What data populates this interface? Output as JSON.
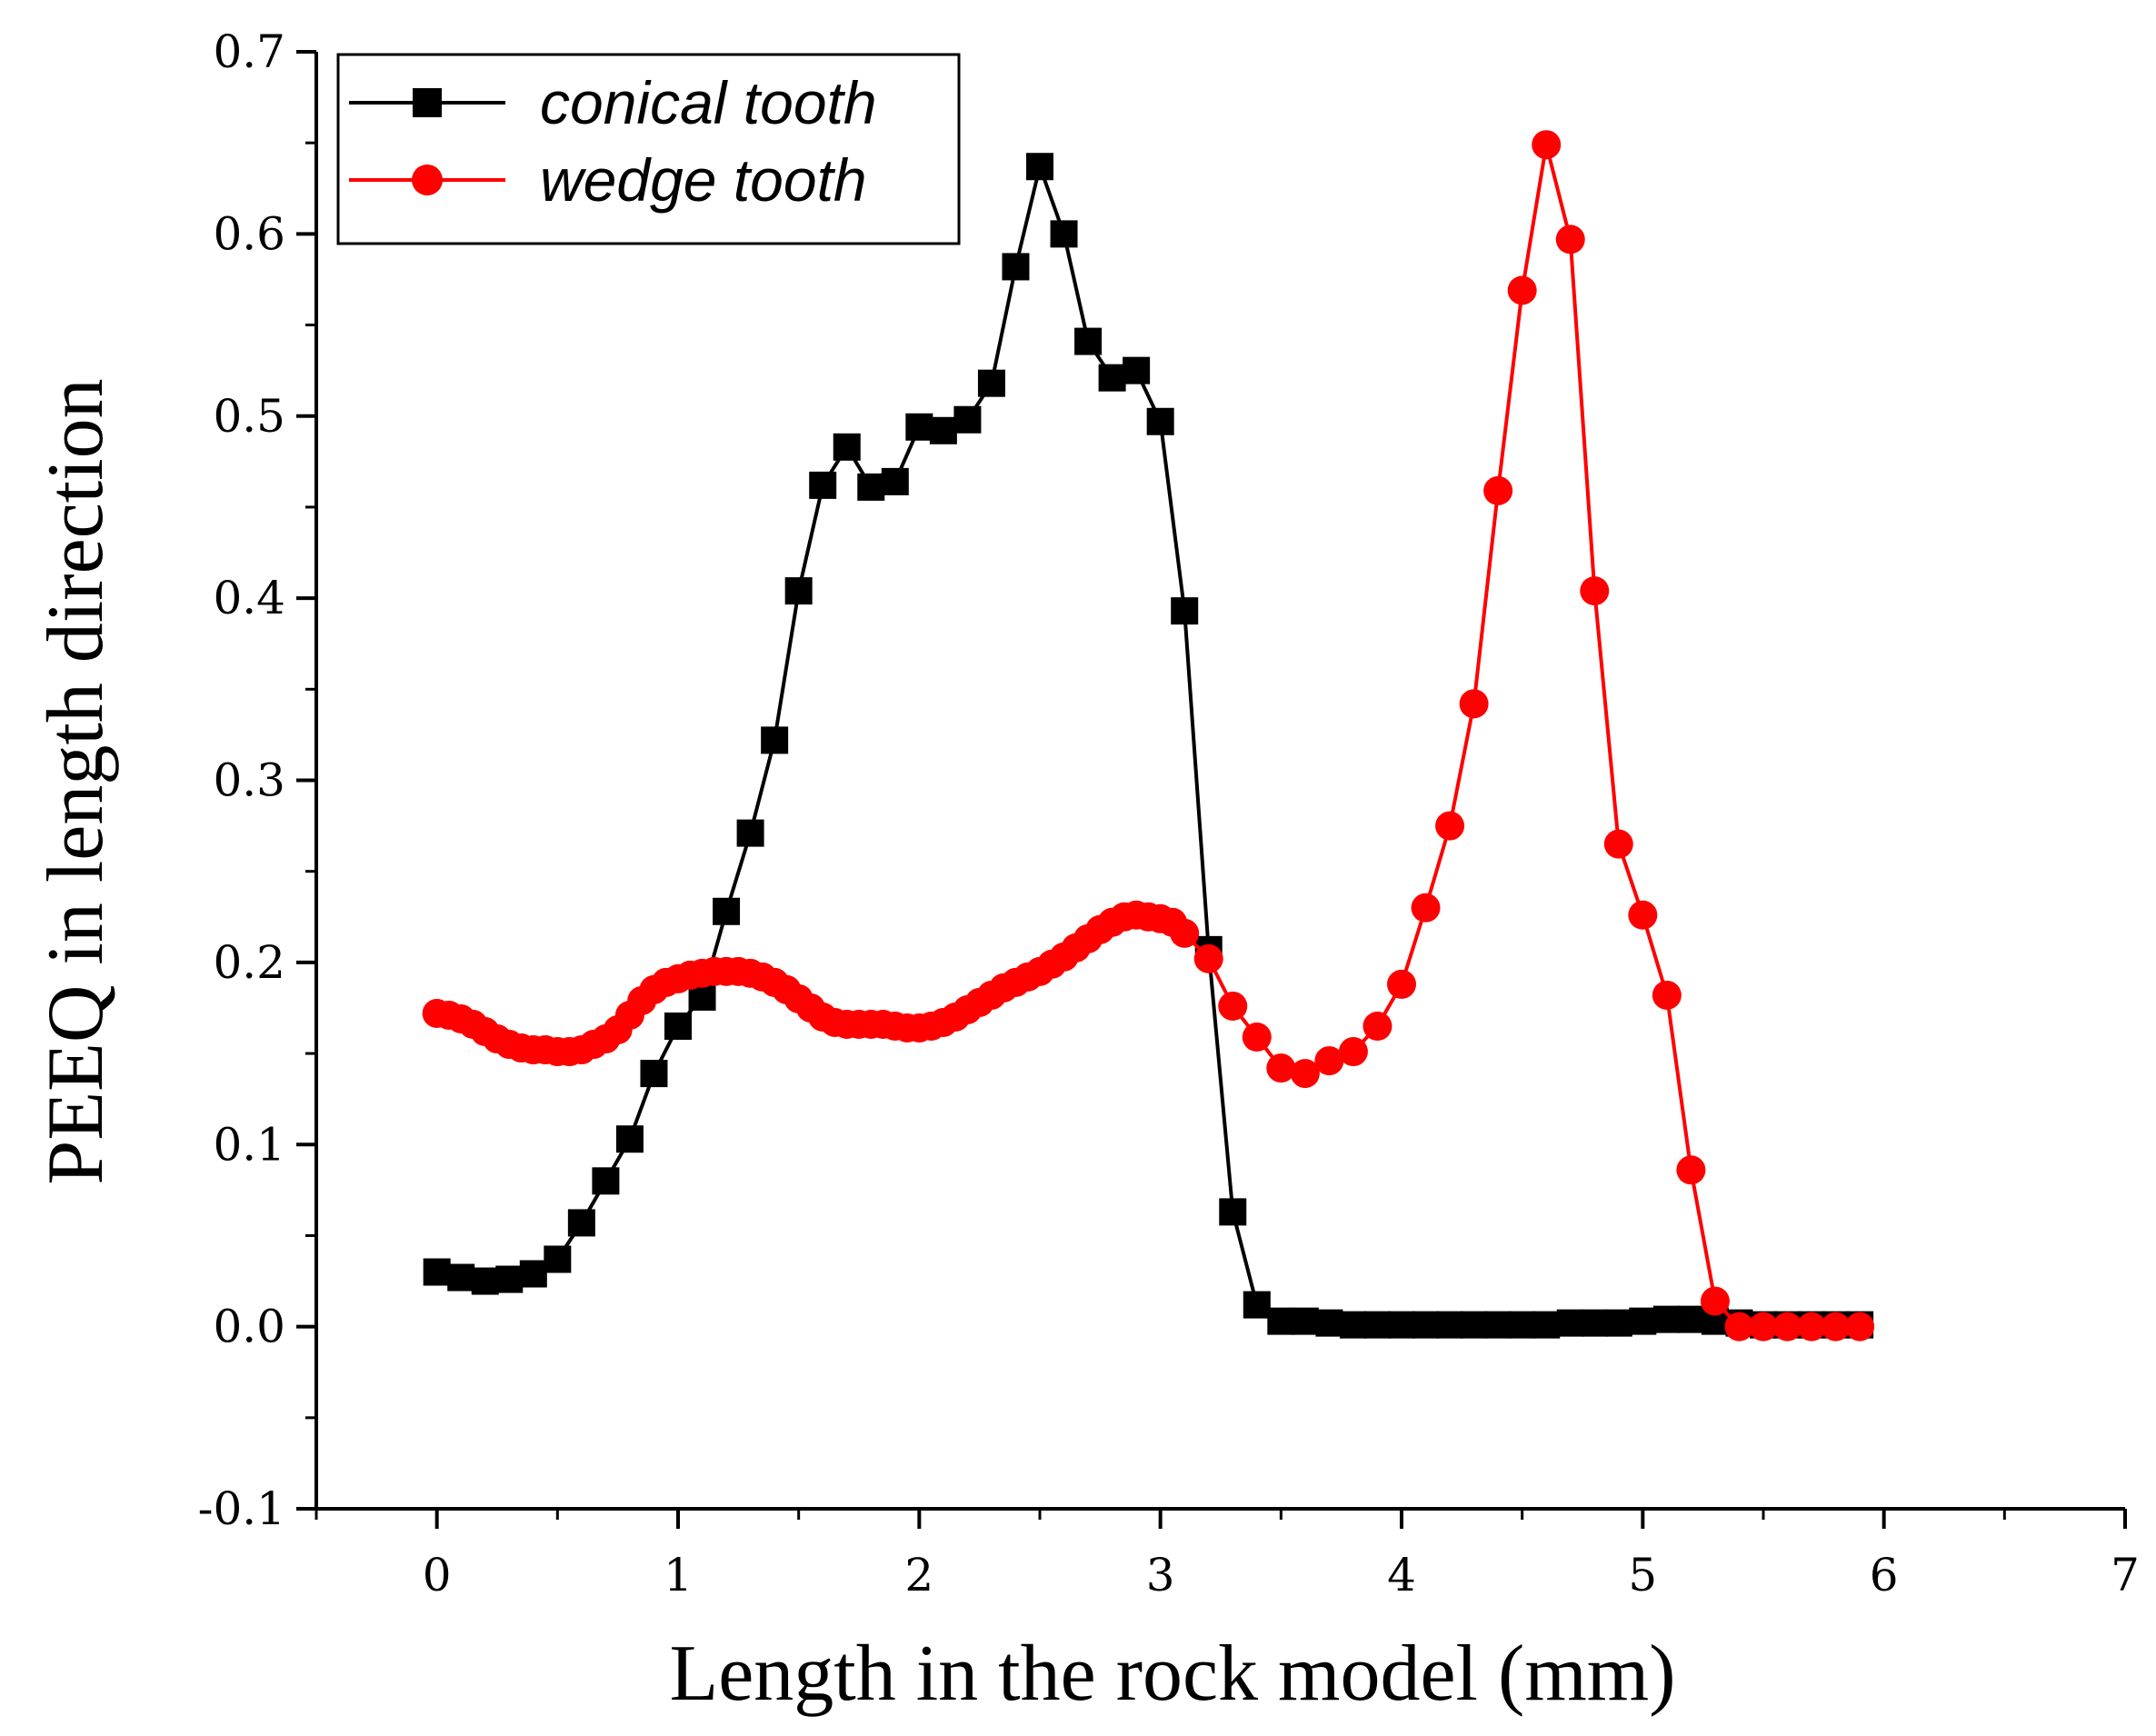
{
  "chart_data": {
    "type": "line",
    "title": "",
    "xlabel": "Length in the rock model (mm)",
    "ylabel": "PEEQ in length direction",
    "xlim": [
      -0.5,
      7
    ],
    "ylim": [
      -0.1,
      0.7
    ],
    "xticks": [
      0,
      1,
      2,
      3,
      4,
      5,
      6,
      7
    ],
    "xtick_labels": [
      "0",
      "1",
      "2",
      "3",
      "4",
      "5",
      "6",
      "7"
    ],
    "yticks": [
      -0.1,
      0.0,
      0.1,
      0.2,
      0.3,
      0.4,
      0.5,
      0.6,
      0.7
    ],
    "ytick_labels": [
      "-0.1",
      "0.0",
      "0.1",
      "0.2",
      "0.3",
      "0.4",
      "0.5",
      "0.6",
      "0.7"
    ],
    "grid": false,
    "legend_position": "top-left",
    "series": [
      {
        "name": "conical tooth",
        "color": "#000000",
        "marker": "square",
        "x": [
          0,
          0.1,
          0.2,
          0.3,
          0.4,
          0.5,
          0.6,
          0.7,
          0.8,
          0.9,
          1.0,
          1.1,
          1.2,
          1.3,
          1.4,
          1.5,
          1.6,
          1.7,
          1.8,
          1.9,
          2.0,
          2.1,
          2.2,
          2.3,
          2.4,
          2.5,
          2.6,
          2.7,
          2.8,
          2.9,
          3.0,
          3.1,
          3.2,
          3.3,
          3.4,
          3.5,
          3.6,
          3.7,
          3.8,
          3.9,
          4.0,
          4.1,
          4.2,
          4.3,
          4.4,
          4.5,
          4.6,
          4.7,
          4.8,
          4.9,
          5.0,
          5.1,
          5.2,
          5.3,
          5.4,
          5.5,
          5.6,
          5.7,
          5.8,
          5.9
        ],
        "y": [
          0.03,
          0.027,
          0.025,
          0.026,
          0.029,
          0.037,
          0.057,
          0.08,
          0.103,
          0.139,
          0.165,
          0.181,
          0.228,
          0.271,
          0.322,
          0.404,
          0.462,
          0.483,
          0.461,
          0.464,
          0.494,
          0.492,
          0.498,
          0.518,
          0.582,
          0.637,
          0.6,
          0.541,
          0.521,
          0.525,
          0.497,
          0.393,
          0.207,
          0.063,
          0.012,
          0.003,
          0.003,
          0.002,
          0.001,
          0.001,
          0.001,
          0.001,
          0.001,
          0.001,
          0.001,
          0.001,
          0.001,
          0.002,
          0.002,
          0.002,
          0.003,
          0.004,
          0.004,
          0.003,
          0.002,
          0.001,
          0.001,
          0.001,
          0.001,
          0.001
        ]
      },
      {
        "name": "wedge tooth",
        "color": "#ff0000",
        "marker": "circle",
        "x": [
          0,
          0.05,
          0.1,
          0.15,
          0.2,
          0.25,
          0.3,
          0.35,
          0.4,
          0.45,
          0.5,
          0.55,
          0.6,
          0.65,
          0.7,
          0.75,
          0.8,
          0.85,
          0.9,
          0.95,
          1.0,
          1.05,
          1.1,
          1.15,
          1.2,
          1.25,
          1.3,
          1.35,
          1.4,
          1.45,
          1.5,
          1.55,
          1.6,
          1.65,
          1.7,
          1.75,
          1.8,
          1.85,
          1.9,
          1.95,
          2.0,
          2.05,
          2.1,
          2.15,
          2.2,
          2.25,
          2.3,
          2.35,
          2.4,
          2.45,
          2.5,
          2.55,
          2.6,
          2.65,
          2.7,
          2.75,
          2.8,
          2.85,
          2.9,
          2.95,
          3.0,
          3.05,
          3.1,
          3.2,
          3.3,
          3.4,
          3.5,
          3.6,
          3.7,
          3.8,
          3.9,
          4.0,
          4.1,
          4.2,
          4.3,
          4.4,
          4.5,
          4.6,
          4.7,
          4.8,
          4.9,
          5.0,
          5.1,
          5.2,
          5.3,
          5.4,
          5.5,
          5.6,
          5.7,
          5.8,
          5.9
        ],
        "y": [
          0.172,
          0.171,
          0.169,
          0.166,
          0.162,
          0.158,
          0.155,
          0.153,
          0.152,
          0.152,
          0.151,
          0.151,
          0.152,
          0.155,
          0.158,
          0.163,
          0.171,
          0.179,
          0.185,
          0.189,
          0.191,
          0.193,
          0.194,
          0.195,
          0.195,
          0.195,
          0.194,
          0.192,
          0.189,
          0.185,
          0.18,
          0.175,
          0.17,
          0.167,
          0.166,
          0.166,
          0.166,
          0.166,
          0.165,
          0.164,
          0.164,
          0.165,
          0.167,
          0.17,
          0.174,
          0.178,
          0.182,
          0.186,
          0.189,
          0.192,
          0.195,
          0.199,
          0.203,
          0.208,
          0.213,
          0.218,
          0.222,
          0.225,
          0.226,
          0.225,
          0.224,
          0.222,
          0.216,
          0.202,
          0.176,
          0.159,
          0.142,
          0.139,
          0.146,
          0.151,
          0.165,
          0.188,
          0.23,
          0.275,
          0.342,
          0.459,
          0.569,
          0.649,
          0.597,
          0.404,
          0.265,
          0.226,
          0.182,
          0.086,
          0.014,
          0.0,
          0.0,
          0.0,
          0.0,
          0.0,
          0.0
        ]
      }
    ]
  }
}
